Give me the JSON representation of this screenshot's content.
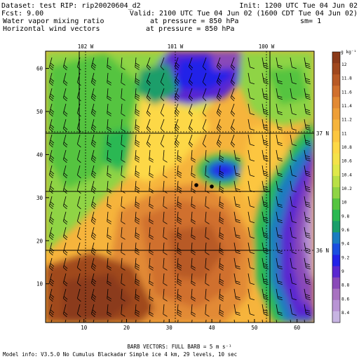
{
  "header": {
    "line1_left": "Dataset: test   RIP: rip20020604_d2",
    "line1_right": "Init: 1200 UTC Tue 04 Jun 02",
    "line2_left": "Fcst:      9.00",
    "line2_right": "Valid: 2100 UTC Tue 04 Jun 02 (1600 CDT Tue 04 Jun 02)",
    "line3_left": "Water vapor mixing ratio",
    "line3_mid": "at pressure =  850 hPa",
    "line3_right": "sm= 1",
    "line4_left": "Horizontal wind vectors",
    "line4_mid": "at pressure =  850 hPa"
  },
  "footer": {
    "line1": "BARB VECTORS:  FULL BARB = 5 m s⁻¹",
    "line2": "Model info: V3.5.0 No Cumulus Blackadar  Simple ice   4 km,  29 levels,   10 sec"
  },
  "chart_data": {
    "type": "heatmap",
    "x_ticks": [
      "10",
      "20",
      "30",
      "40",
      "50",
      "60"
    ],
    "y_ticks": [
      "10",
      "20",
      "30",
      "40",
      "50",
      "60"
    ],
    "longitude_labels": [
      "102 W",
      "101 W",
      "100 W"
    ],
    "latitude_labels": [
      "37 N",
      "36 N"
    ],
    "xlim": [
      1,
      64
    ],
    "ylim": [
      1,
      64
    ],
    "colorbar": {
      "unit": "g kg⁻¹",
      "labels": [
        "12",
        "11.8",
        "11.6",
        "11.4",
        "11.2",
        "11",
        "10.8",
        "10.6",
        "10.4",
        "10.2",
        "10",
        "9.8",
        "9.6",
        "9.4",
        "9.2",
        "9",
        "8.8",
        "8.6",
        "8.4"
      ],
      "colors_top_to_bottom": [
        "#8b3a1a",
        "#a0481e",
        "#b85a26",
        "#d0702e",
        "#e28a34",
        "#ee9f38",
        "#f6b43c",
        "#fcc640",
        "#fdd846",
        "#f4e24a",
        "#dfe84a",
        "#b9e046",
        "#8fd444",
        "#55c440",
        "#2ab852",
        "#1a9e6a",
        "#1a7cc0",
        "#1a4ee0",
        "#2222e8",
        "#5a28d0",
        "#8a4ab8",
        "#a872c0",
        "#b894d4",
        "#c7b4e2"
      ]
    },
    "fields": {
      "mixing_ratio_range": [
        8.4,
        12.4
      ],
      "moist_max_region": "southwest",
      "dry_min_region": "east and north-center"
    },
    "wind": {
      "barb_value": "5 m s⁻¹",
      "prevailing": "southerly to south-southeasterly, 5-15 m s⁻¹"
    },
    "markers": [
      "dot-1",
      "dot-2"
    ]
  }
}
